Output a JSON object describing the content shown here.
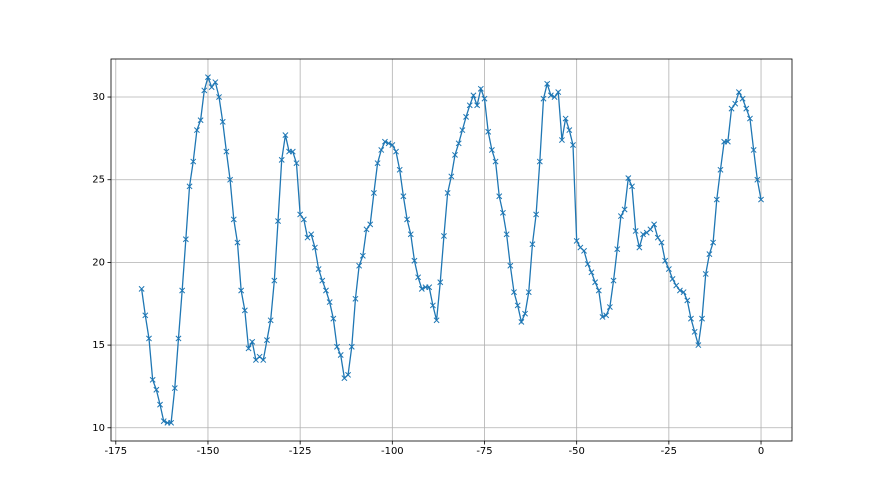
{
  "chart_data": {
    "type": "line",
    "color": "#1f77b4",
    "grid": true,
    "marker": "x",
    "xlim": [
      -176.3,
      8.4
    ],
    "ylim": [
      9.2,
      32.3
    ],
    "xticks": [
      -175,
      -150,
      -125,
      -100,
      -75,
      -50,
      -25,
      0
    ],
    "yticks": [
      10,
      15,
      20,
      25,
      30
    ],
    "x": [
      -168,
      -167,
      -166,
      -165,
      -164,
      -163,
      -162,
      -161,
      -160,
      -159,
      -158,
      -157,
      -156,
      -155,
      -154,
      -153,
      -152,
      -151,
      -150,
      -149,
      -148,
      -147,
      -146,
      -145,
      -144,
      -143,
      -142,
      -141,
      -140,
      -139,
      -138,
      -137,
      -136,
      -135,
      -134,
      -133,
      -132,
      -131,
      -130,
      -129,
      -128,
      -127,
      -126,
      -125,
      -124,
      -123,
      -122,
      -121,
      -120,
      -119,
      -118,
      -117,
      -116,
      -115,
      -114,
      -113,
      -112,
      -111,
      -110,
      -109,
      -108,
      -107,
      -106,
      -105,
      -104,
      -103,
      -102,
      -101,
      -100,
      -99,
      -98,
      -97,
      -96,
      -95,
      -94,
      -93,
      -92,
      -91,
      -90,
      -89,
      -88,
      -87,
      -86,
      -85,
      -84,
      -83,
      -82,
      -81,
      -80,
      -79,
      -78,
      -77,
      -76,
      -75,
      -74,
      -73,
      -72,
      -71,
      -70,
      -69,
      -68,
      -67,
      -66,
      -65,
      -64,
      -63,
      -62,
      -61,
      -60,
      -59,
      -58,
      -57,
      -56,
      -55,
      -54,
      -53,
      -52,
      -51,
      -50,
      -49,
      -48,
      -47,
      -46,
      -45,
      -44,
      -43,
      -42,
      -41,
      -40,
      -39,
      -38,
      -37,
      -36,
      -35,
      -34,
      -33,
      -32,
      -31,
      -30,
      -29,
      -28,
      -27,
      -26,
      -25,
      -24,
      -23,
      -22,
      -21,
      -20,
      -19,
      -18,
      -17,
      -16,
      -15,
      -14,
      -13,
      -12,
      -11,
      -10,
      -9,
      -8,
      -7,
      -6,
      -5,
      -4,
      -3,
      -2,
      -1,
      0
    ],
    "values": [
      18.4,
      16.8,
      15.4,
      12.9,
      12.3,
      11.4,
      10.4,
      10.3,
      10.3,
      12.4,
      15.4,
      18.3,
      21.4,
      24.6,
      26.1,
      28.0,
      28.6,
      30.4,
      31.2,
      30.6,
      30.9,
      30.0,
      28.5,
      26.7,
      25.0,
      22.6,
      21.2,
      18.3,
      17.1,
      14.8,
      15.2,
      14.1,
      14.3,
      14.1,
      15.3,
      16.5,
      18.9,
      22.5,
      26.2,
      27.7,
      26.7,
      26.7,
      26.0,
      22.9,
      22.6,
      21.5,
      21.7,
      20.9,
      19.6,
      18.9,
      18.3,
      17.6,
      16.6,
      14.9,
      14.4,
      13.0,
      13.2,
      14.9,
      17.8,
      19.8,
      20.4,
      22.0,
      22.3,
      24.2,
      26.0,
      26.8,
      27.3,
      27.2,
      27.1,
      26.7,
      25.6,
      24.0,
      22.6,
      21.7,
      20.1,
      19.1,
      18.4,
      18.5,
      18.5,
      17.4,
      16.5,
      18.8,
      21.6,
      24.2,
      25.2,
      26.5,
      27.2,
      28.0,
      28.8,
      29.5,
      30.1,
      29.5,
      30.5,
      29.9,
      27.9,
      26.8,
      26.1,
      24.0,
      23.0,
      21.7,
      19.8,
      18.2,
      17.4,
      16.4,
      16.9,
      18.2,
      21.1,
      22.9,
      26.1,
      29.9,
      30.8,
      30.1,
      30.0,
      30.3,
      27.4,
      28.7,
      28.0,
      27.1,
      21.3,
      20.9,
      20.7,
      19.9,
      19.4,
      18.8,
      18.3,
      16.7,
      16.8,
      17.3,
      18.9,
      20.8,
      22.8,
      23.2,
      25.1,
      24.6,
      21.9,
      20.9,
      21.7,
      21.8,
      22.0,
      22.3,
      21.5,
      21.2,
      20.1,
      19.6,
      19.0,
      18.6,
      18.3,
      18.2,
      17.7,
      16.6,
      15.8,
      15.0,
      16.6,
      19.3,
      20.5,
      21.2,
      23.8,
      25.6,
      27.3,
      27.3,
      29.3,
      29.6,
      30.3,
      29.9,
      29.3,
      28.7,
      26.8,
      25.0,
      23.8
    ]
  }
}
